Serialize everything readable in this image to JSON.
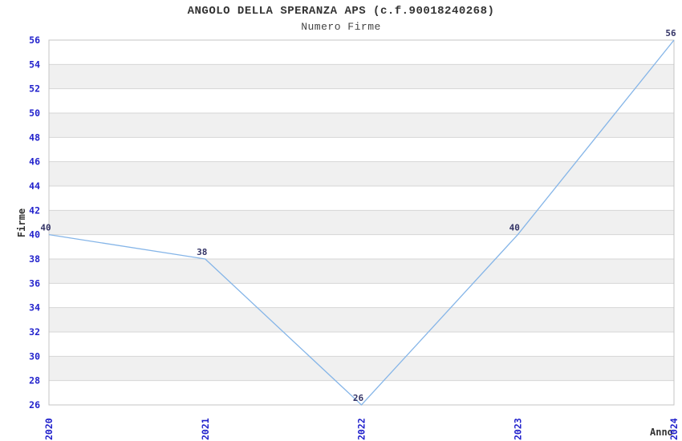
{
  "header": {
    "title": "ANGOLO DELLA SPERANZA APS (c.f.90018240268)",
    "subtitle": "Numero Firme"
  },
  "chart_data": {
    "type": "line",
    "title": "ANGOLO DELLA SPERANZA APS (c.f.90018240268)",
    "subtitle": "Numero Firme",
    "xlabel": "Anno",
    "ylabel": "Firme",
    "categories": [
      "2020",
      "2021",
      "2022",
      "2023",
      "2024"
    ],
    "series": [
      {
        "name": "Numero Firme",
        "values": [
          40,
          38,
          26,
          40,
          56
        ]
      }
    ],
    "data_labels": [
      "40",
      "38",
      "26",
      "40",
      "56"
    ],
    "ylim": [
      26,
      56
    ],
    "yticks": [
      26,
      28,
      30,
      32,
      34,
      36,
      38,
      40,
      42,
      44,
      46,
      48,
      50,
      52,
      54,
      56
    ],
    "grid": true,
    "legend_position": "none",
    "zebra_bands": true,
    "colors": {
      "line": "#85b5e8",
      "tick_label": "#2222cc",
      "data_label": "#333366",
      "band_gray": "#f0f0f0",
      "band_white": "#ffffff",
      "grid_line": "#d6d6d6",
      "plot_border": "#c4c4c4",
      "title_text": "#333333",
      "background": "#ffffff"
    }
  }
}
